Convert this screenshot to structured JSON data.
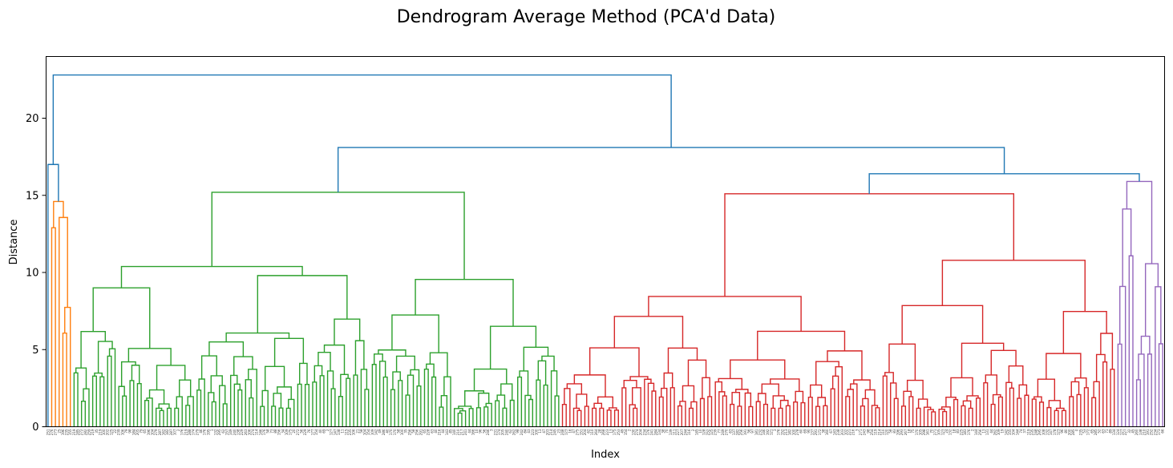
{
  "chart_data": {
    "type": "dendrogram",
    "title": "Dendrogram Average Method (PCA'd Data)",
    "xlabel": "Index",
    "ylabel": "Distance",
    "ylim": [
      0,
      24
    ],
    "yticks": [
      0,
      5,
      10,
      15,
      20
    ],
    "grid": false,
    "legend": "none",
    "leaf_count": 300,
    "colors": {
      "top": "#1f77b4",
      "orange": "#ff7f0e",
      "green": "#2ca02c",
      "red": "#d62728",
      "purple": "#9467bd"
    },
    "clusters": [
      {
        "color": "orange",
        "leaves": 6,
        "height": 14.6
      },
      {
        "color": "green",
        "leaves": 131,
        "height": 15.2
      },
      {
        "color": "red",
        "leaves": 149,
        "height": 15.1
      },
      {
        "color": "purple",
        "leaves": 9,
        "height": 15.9
      }
    ],
    "top_merges": [
      {
        "name": "green-red-purple",
        "height": 18.1
      },
      {
        "name": "red-purple",
        "height": 16.4
      },
      {
        "name": "outlier-orange",
        "height": 17.0
      },
      {
        "name": "root",
        "height": 22.8
      }
    ]
  }
}
